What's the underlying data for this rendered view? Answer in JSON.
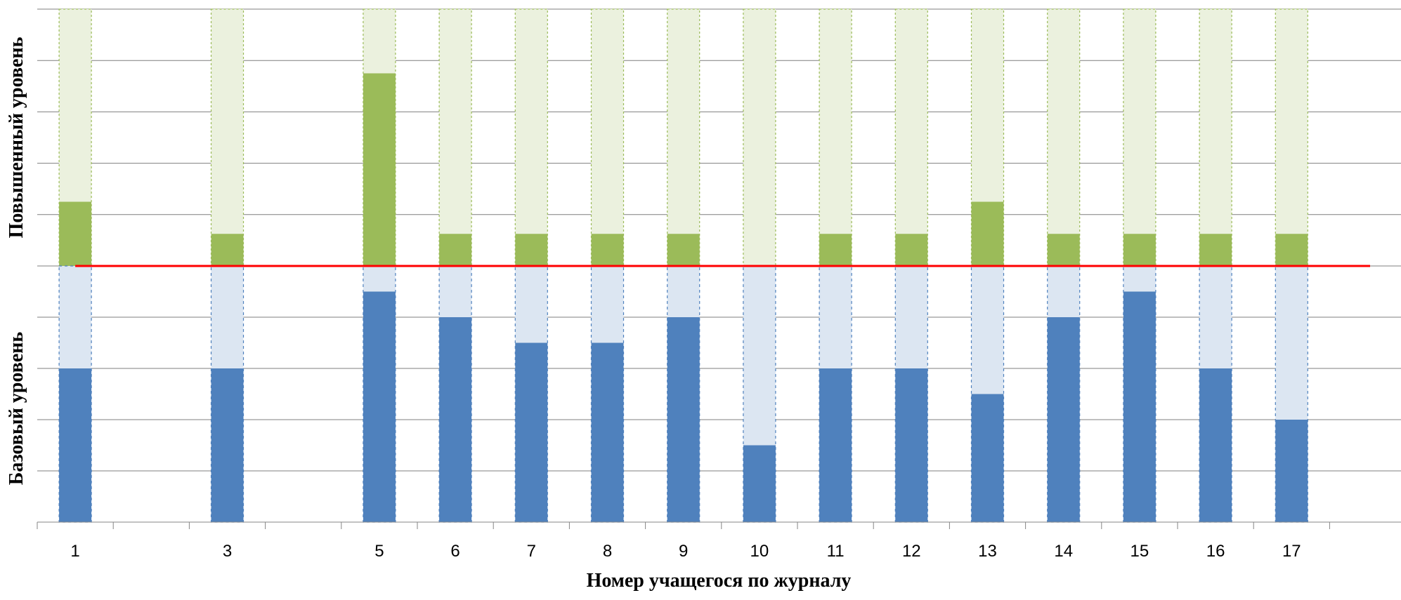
{
  "chart_data": {
    "type": "bar",
    "xlabel": "Номер учащегося по журналу",
    "y_labels": {
      "upper": "Повышенный уровень",
      "lower": "Базовый уровень"
    },
    "categories": [
      "1",
      "",
      "3",
      "",
      "5",
      "6",
      "7",
      "8",
      "9",
      "10",
      "11",
      "12",
      "13",
      "14",
      "15",
      "16",
      "17"
    ],
    "upper_max": 5,
    "lower_max": 5,
    "series": [
      {
        "name": "",
        "values": [
          1.25,
          null,
          0.625,
          null,
          3.75,
          0.625,
          0.625,
          0.625,
          0.625,
          0,
          0.625,
          0.625,
          1.25,
          0.625,
          0.625,
          0.625,
          0.625
        ]
      },
      {
        "name": "",
        "values": [
          3,
          null,
          3,
          null,
          4.5,
          4,
          3.5,
          3.5,
          4,
          1.5,
          3,
          3,
          2.5,
          4,
          4.5,
          3,
          2
        ]
      }
    ],
    "grid": true,
    "baseline_color": "#ff0000",
    "colors": {
      "upper_fill": "#9bbb59",
      "upper_bg": "#ebf1de",
      "upper_border": "#9bbb59",
      "lower_fill": "#4f81bd",
      "lower_bg": "#dce6f2",
      "lower_border": "#4f81bd",
      "grid": "#7f7f7f",
      "axis": "#868686"
    }
  }
}
